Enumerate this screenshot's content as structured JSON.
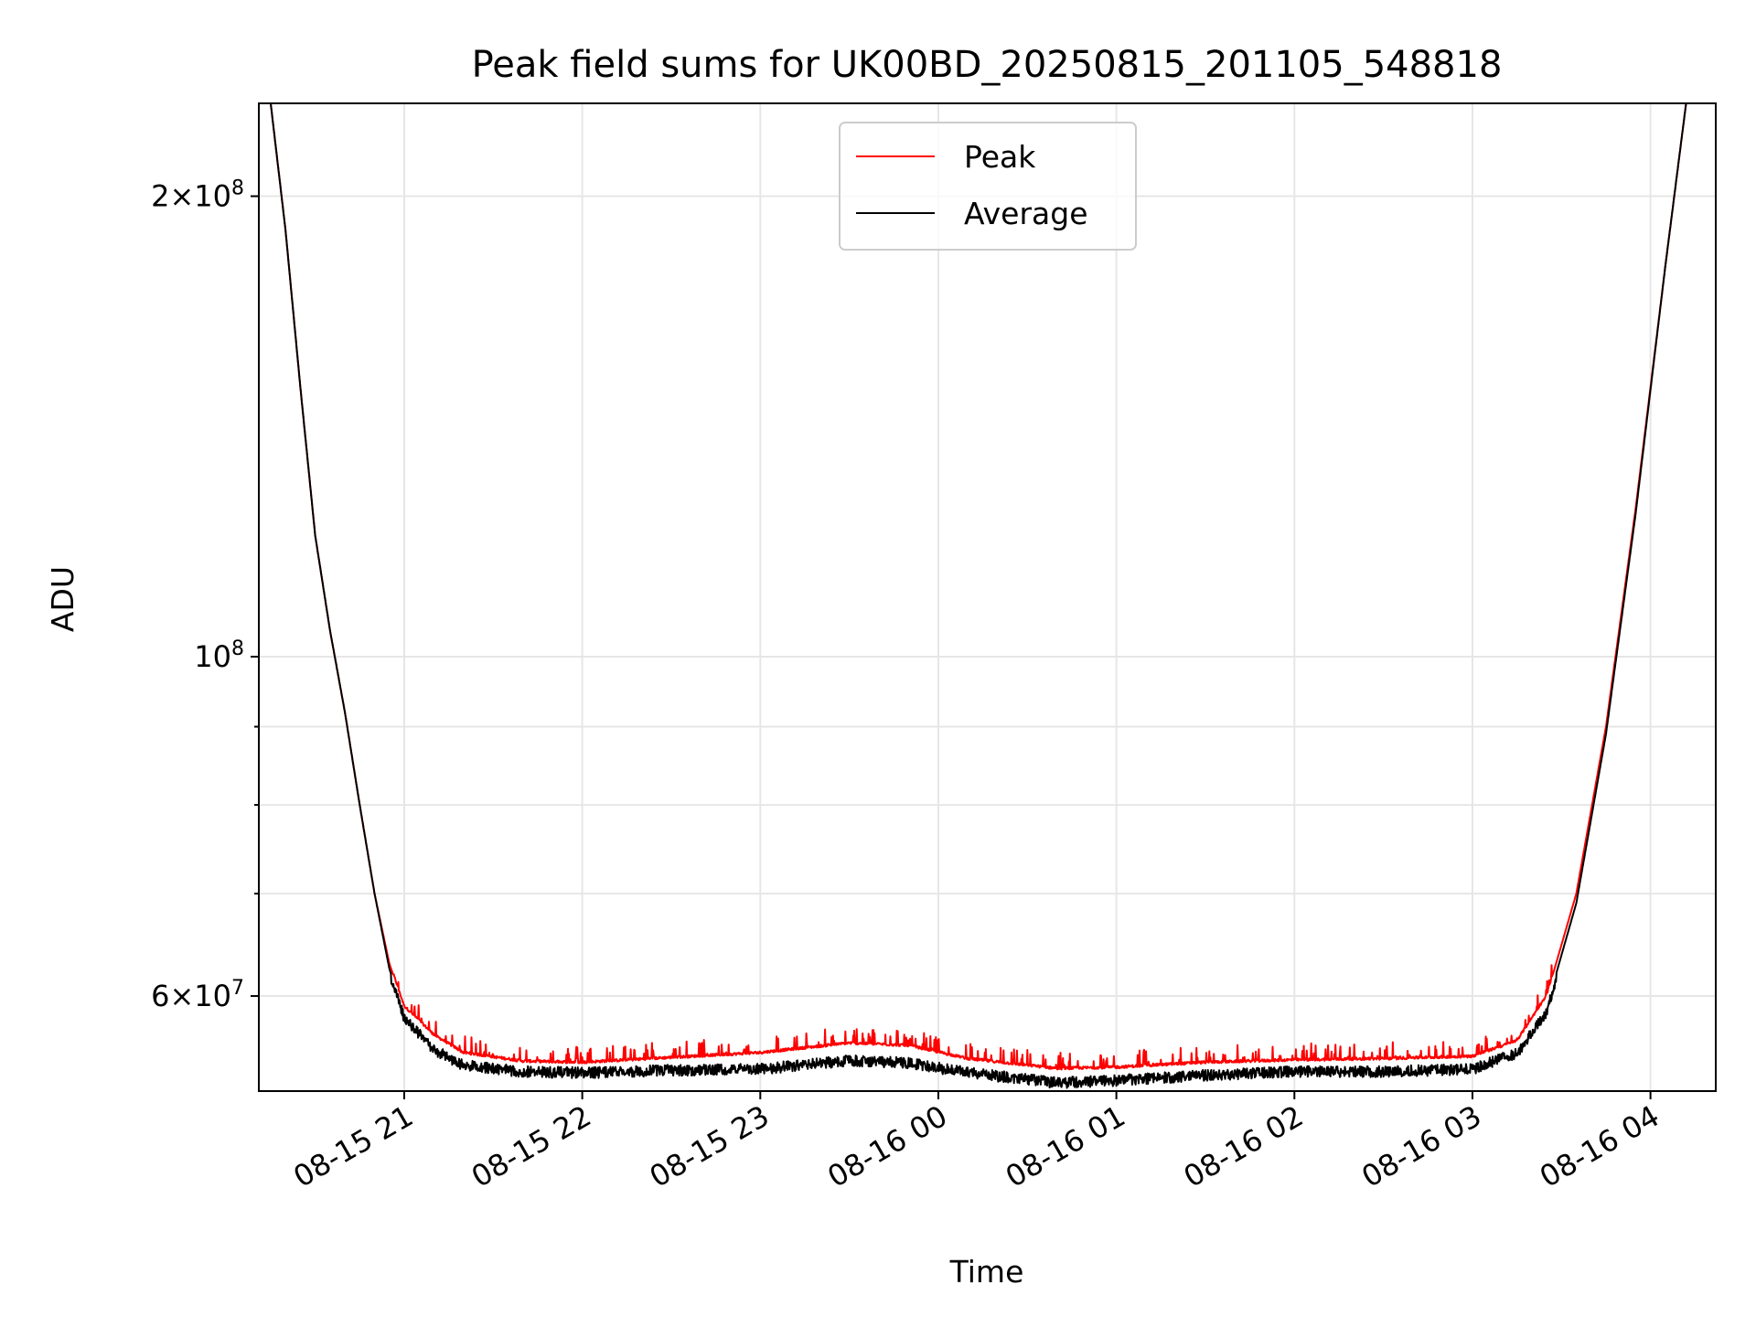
{
  "chart_data": {
    "type": "line",
    "title": "Peak field sums for UK00BD_20250815_201105_548818",
    "xlabel": "Time",
    "ylabel": "ADU",
    "y_scale": "log",
    "grid": true,
    "legend_placement": "upper center",
    "xlim": [
      "2025-08-15 20:11",
      "2025-08-16 04:22"
    ],
    "ylim": [
      52000000,
      230000000
    ],
    "x_ticks": [
      {
        "value": "2025-08-15 21:00",
        "label": "08-15 21"
      },
      {
        "value": "2025-08-15 22:00",
        "label": "08-15 22"
      },
      {
        "value": "2025-08-15 23:00",
        "label": "08-15 23"
      },
      {
        "value": "2025-08-16 00:00",
        "label": "08-16 00"
      },
      {
        "value": "2025-08-16 01:00",
        "label": "08-16 01"
      },
      {
        "value": "2025-08-16 02:00",
        "label": "08-16 02"
      },
      {
        "value": "2025-08-16 03:00",
        "label": "08-16 03"
      },
      {
        "value": "2025-08-16 04:00",
        "label": "08-16 04"
      }
    ],
    "y_major_ticks": [
      {
        "value": 60000000,
        "mantissa": "6",
        "base": "10",
        "exponent": "7"
      },
      {
        "value": 100000000,
        "mantissa": "",
        "base": "10",
        "exponent": "8"
      },
      {
        "value": 200000000,
        "mantissa": "2",
        "base": "10",
        "exponent": "8"
      }
    ],
    "y_minor_ticks": [
      70000000,
      80000000,
      90000000
    ],
    "series": [
      {
        "name": "Peak",
        "color": "#ff0000",
        "noise_amplitude": 1500000,
        "points": [
          [
            "2025-08-15 20:11",
            230000000
          ],
          [
            "2025-08-15 20:15",
            230000000
          ],
          [
            "2025-08-15 20:20",
            190000000
          ],
          [
            "2025-08-15 20:25",
            150000000
          ],
          [
            "2025-08-15 20:30",
            120000000
          ],
          [
            "2025-08-15 20:35",
            104000000
          ],
          [
            "2025-08-15 20:40",
            92000000
          ],
          [
            "2025-08-15 20:45",
            80000000
          ],
          [
            "2025-08-15 20:50",
            70000000
          ],
          [
            "2025-08-15 20:55",
            63000000
          ],
          [
            "2025-08-15 21:00",
            59000000
          ],
          [
            "2025-08-15 21:10",
            56500000
          ],
          [
            "2025-08-15 21:20",
            55000000
          ],
          [
            "2025-08-15 21:40",
            54300000
          ],
          [
            "2025-08-15 22:00",
            54200000
          ],
          [
            "2025-08-15 22:30",
            54600000
          ],
          [
            "2025-08-15 23:00",
            55000000
          ],
          [
            "2025-08-15 23:30",
            55800000
          ],
          [
            "2025-08-15 23:50",
            55600000
          ],
          [
            "2025-08-16 00:10",
            54500000
          ],
          [
            "2025-08-16 00:40",
            53700000
          ],
          [
            "2025-08-16 01:00",
            53800000
          ],
          [
            "2025-08-16 01:30",
            54200000
          ],
          [
            "2025-08-16 02:00",
            54400000
          ],
          [
            "2025-08-16 02:30",
            54500000
          ],
          [
            "2025-08-16 03:00",
            54700000
          ],
          [
            "2025-08-16 03:15",
            56000000
          ],
          [
            "2025-08-16 03:25",
            60000000
          ],
          [
            "2025-08-16 03:35",
            70000000
          ],
          [
            "2025-08-16 03:45",
            90000000
          ],
          [
            "2025-08-16 03:55",
            125000000
          ],
          [
            "2025-08-16 04:05",
            180000000
          ],
          [
            "2025-08-16 04:12",
            230000000
          ],
          [
            "2025-08-16 04:22",
            230000000
          ]
        ]
      },
      {
        "name": "Average",
        "color": "#000000",
        "noise_amplitude": 900000,
        "points": [
          [
            "2025-08-15 20:11",
            230000000
          ],
          [
            "2025-08-15 20:15",
            230000000
          ],
          [
            "2025-08-15 20:20",
            190000000
          ],
          [
            "2025-08-15 20:25",
            150000000
          ],
          [
            "2025-08-15 20:30",
            120000000
          ],
          [
            "2025-08-15 20:35",
            104000000
          ],
          [
            "2025-08-15 20:40",
            92000000
          ],
          [
            "2025-08-15 20:45",
            80000000
          ],
          [
            "2025-08-15 20:50",
            70000000
          ],
          [
            "2025-08-15 20:55",
            62500000
          ],
          [
            "2025-08-15 21:00",
            58500000
          ],
          [
            "2025-08-15 21:10",
            55800000
          ],
          [
            "2025-08-15 21:20",
            54500000
          ],
          [
            "2025-08-15 21:40",
            54000000
          ],
          [
            "2025-08-15 22:00",
            53900000
          ],
          [
            "2025-08-15 22:30",
            54100000
          ],
          [
            "2025-08-15 23:00",
            54200000
          ],
          [
            "2025-08-15 23:30",
            54900000
          ],
          [
            "2025-08-15 23:50",
            54700000
          ],
          [
            "2025-08-16 00:10",
            53900000
          ],
          [
            "2025-08-16 00:40",
            53100000
          ],
          [
            "2025-08-16 01:00",
            53300000
          ],
          [
            "2025-08-16 01:30",
            53700000
          ],
          [
            "2025-08-16 02:00",
            54000000
          ],
          [
            "2025-08-16 02:30",
            54000000
          ],
          [
            "2025-08-16 03:00",
            54200000
          ],
          [
            "2025-08-16 03:15",
            55500000
          ],
          [
            "2025-08-16 03:25",
            59000000
          ],
          [
            "2025-08-16 03:35",
            69000000
          ],
          [
            "2025-08-16 03:45",
            89000000
          ],
          [
            "2025-08-16 03:55",
            124000000
          ],
          [
            "2025-08-16 04:05",
            180000000
          ],
          [
            "2025-08-16 04:12",
            230000000
          ],
          [
            "2025-08-16 04:22",
            230000000
          ]
        ]
      }
    ]
  }
}
